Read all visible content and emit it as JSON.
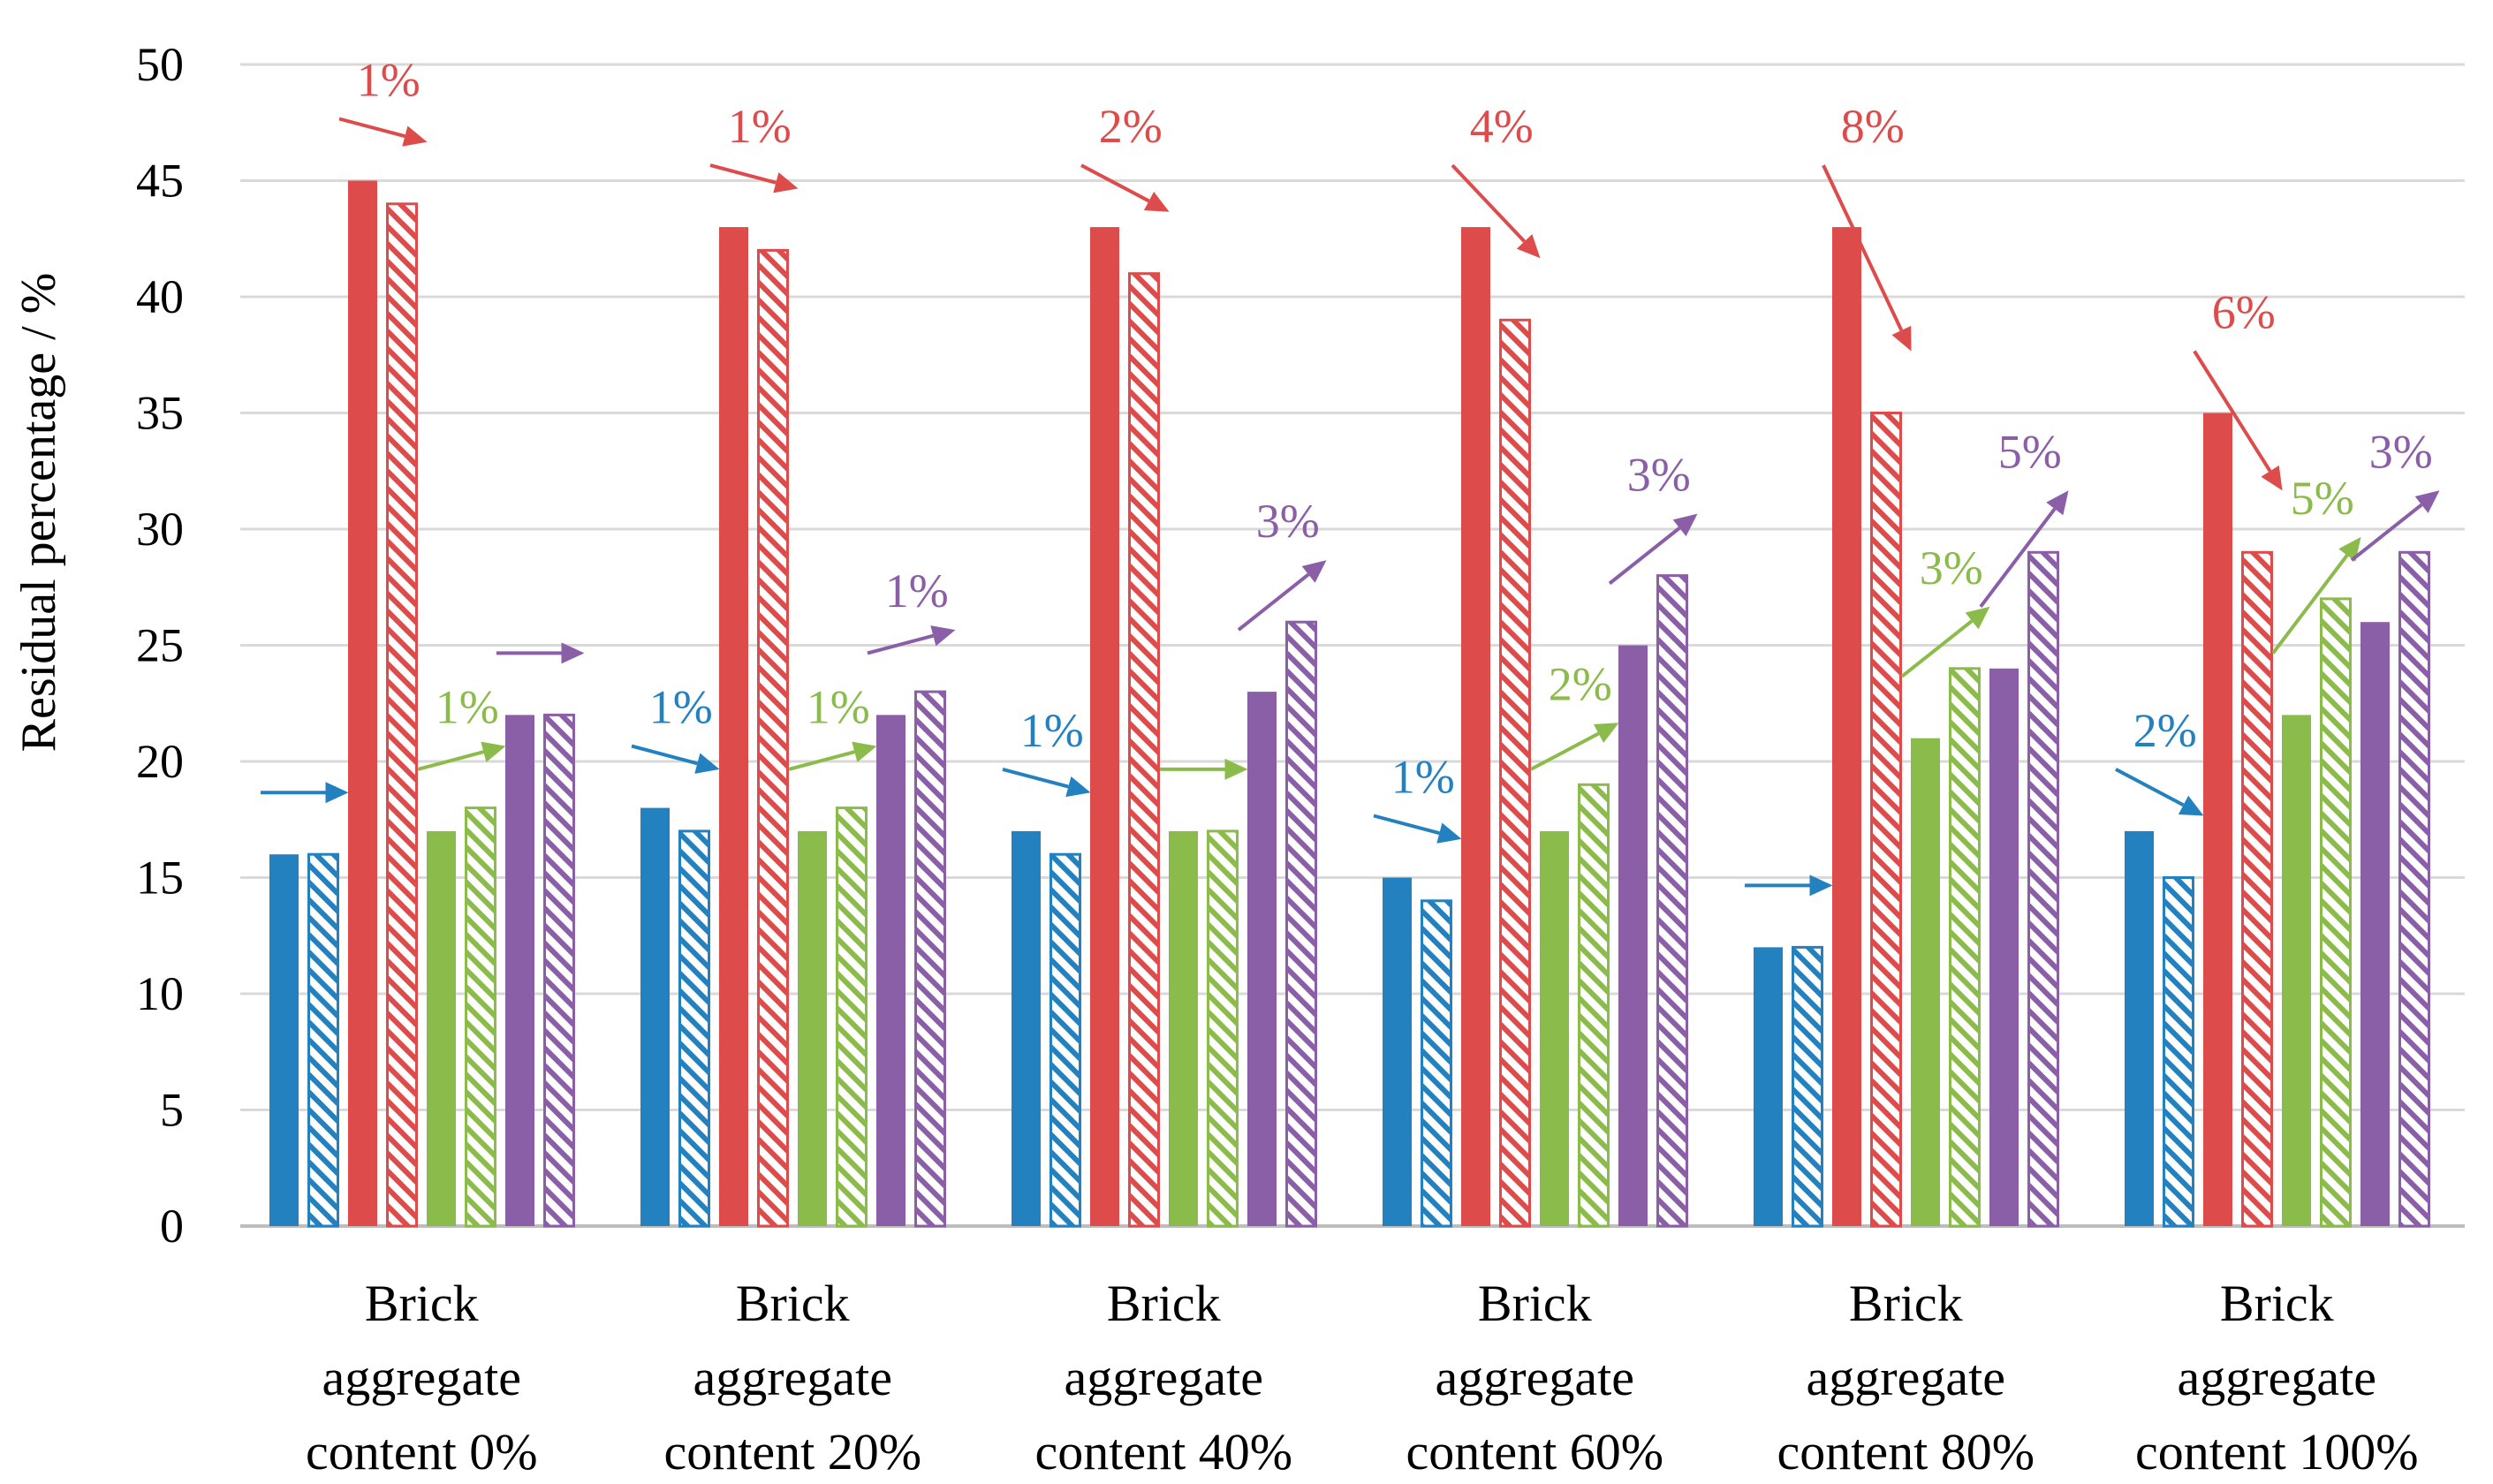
{
  "chart_data": {
    "type": "bar",
    "ylabel": "Residual percentage / %",
    "xlabel": "",
    "ylim": [
      0,
      50
    ],
    "yticks": [
      "0",
      "5",
      "10",
      "15",
      "20",
      "25",
      "30",
      "35",
      "40",
      "45",
      "50"
    ],
    "grid": true,
    "categories": [
      [
        "Brick",
        "aggregate",
        "content 0%"
      ],
      [
        "Brick",
        "aggregate",
        "content 20%"
      ],
      [
        "Brick",
        "aggregate",
        "content 40%"
      ],
      [
        "Brick",
        "aggregate",
        "content 60%"
      ],
      [
        "Brick",
        "aggregate",
        "content 80%"
      ],
      [
        "Brick",
        "aggregate",
        "content 100%"
      ]
    ],
    "series": [
      {
        "name": "Blue (solid)",
        "color": "#2381c0",
        "pattern": "solid",
        "values": [
          16,
          18,
          17,
          15,
          12,
          17
        ]
      },
      {
        "name": "Blue (hatched)",
        "color": "#2381c0",
        "pattern": "hatched",
        "values": [
          16,
          17,
          16,
          14,
          12,
          15
        ]
      },
      {
        "name": "Red (solid)",
        "color": "#de4b4b",
        "pattern": "solid",
        "values": [
          45,
          43,
          43,
          43,
          43,
          35
        ]
      },
      {
        "name": "Red (hatched)",
        "color": "#de4b4b",
        "pattern": "hatched",
        "values": [
          44,
          42,
          41,
          39,
          35,
          29
        ]
      },
      {
        "name": "Green (solid)",
        "color": "#8bbb4a",
        "pattern": "solid",
        "values": [
          17,
          17,
          17,
          17,
          21,
          22
        ]
      },
      {
        "name": "Green (hatched)",
        "color": "#8bbb4a",
        "pattern": "hatched",
        "values": [
          18,
          18,
          17,
          19,
          24,
          27
        ]
      },
      {
        "name": "Purple (solid)",
        "color": "#8b5ea8",
        "pattern": "solid",
        "values": [
          22,
          22,
          23,
          25,
          24,
          26
        ]
      },
      {
        "name": "Purple (hatched)",
        "color": "#8b5ea8",
        "pattern": "hatched",
        "values": [
          22,
          23,
          26,
          28,
          29,
          29
        ]
      }
    ],
    "annotations": [
      {
        "group": 0,
        "pair": 0,
        "label": ""
      },
      {
        "group": 0,
        "pair": 1,
        "label": "1%"
      },
      {
        "group": 0,
        "pair": 2,
        "label": "1%"
      },
      {
        "group": 0,
        "pair": 3,
        "label": ""
      },
      {
        "group": 1,
        "pair": 0,
        "label": "1%"
      },
      {
        "group": 1,
        "pair": 1,
        "label": "1%"
      },
      {
        "group": 1,
        "pair": 2,
        "label": "1%"
      },
      {
        "group": 1,
        "pair": 3,
        "label": "1%"
      },
      {
        "group": 2,
        "pair": 0,
        "label": "1%"
      },
      {
        "group": 2,
        "pair": 1,
        "label": "2%"
      },
      {
        "group": 2,
        "pair": 2,
        "label": ""
      },
      {
        "group": 2,
        "pair": 3,
        "label": "3%"
      },
      {
        "group": 3,
        "pair": 0,
        "label": "1%"
      },
      {
        "group": 3,
        "pair": 1,
        "label": "4%"
      },
      {
        "group": 3,
        "pair": 2,
        "label": "2%"
      },
      {
        "group": 3,
        "pair": 3,
        "label": "3%"
      },
      {
        "group": 4,
        "pair": 0,
        "label": ""
      },
      {
        "group": 4,
        "pair": 1,
        "label": "8%"
      },
      {
        "group": 4,
        "pair": 2,
        "label": "3%"
      },
      {
        "group": 4,
        "pair": 3,
        "label": "5%"
      },
      {
        "group": 5,
        "pair": 0,
        "label": "2%"
      },
      {
        "group": 5,
        "pair": 1,
        "label": "6%"
      },
      {
        "group": 5,
        "pair": 2,
        "label": "5%"
      },
      {
        "group": 5,
        "pair": 3,
        "label": "3%"
      }
    ]
  }
}
